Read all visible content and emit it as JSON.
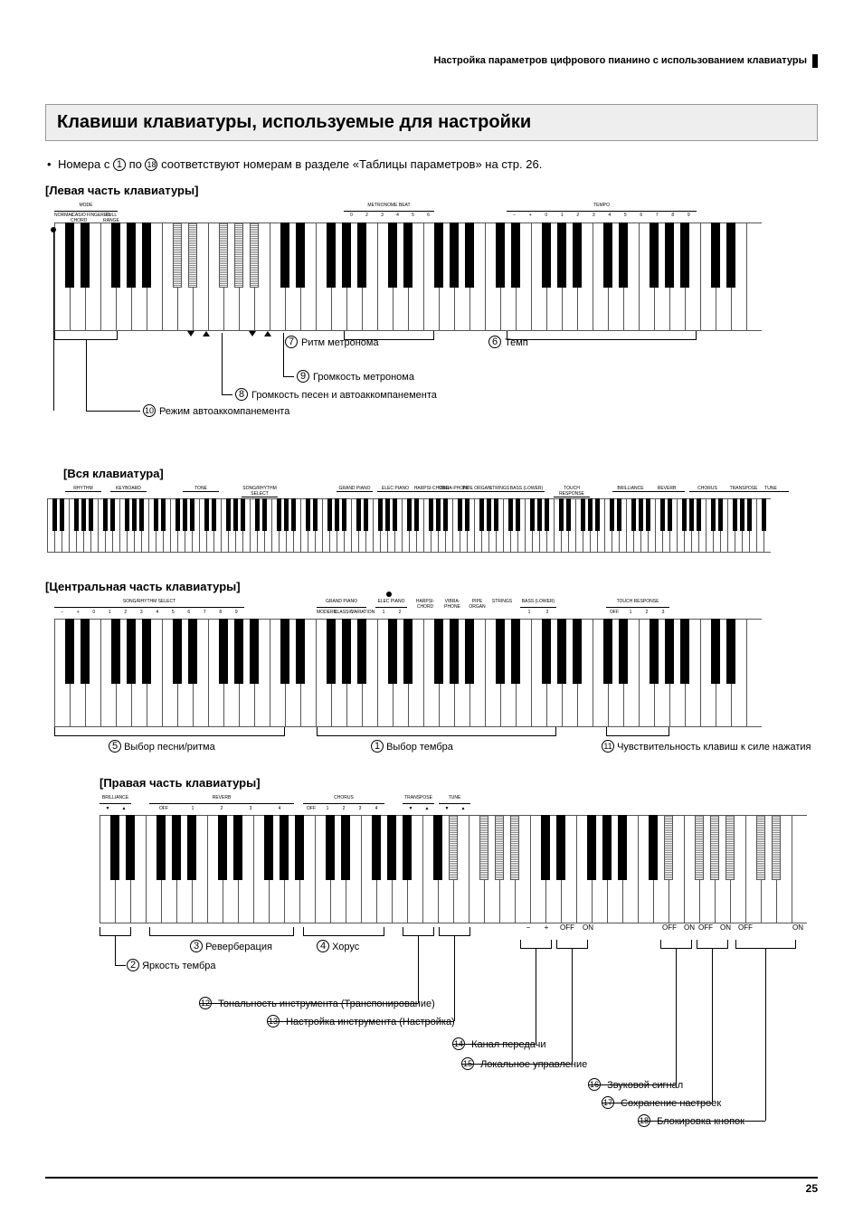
{
  "header": "Настройка параметров цифрового пианино с использованием клавиатуры",
  "title": "Клавиши клавиатуры, используемые для настройки",
  "intro_prefix": "Номера с ",
  "intro_mid": " по ",
  "intro_suffix": " соответствуют номерам в разделе «Таблицы параметров» на стр. 26.",
  "intro_n1": "1",
  "intro_n2": "18",
  "page_number": "25",
  "sec_left": "[Левая часть клавиатуры]",
  "sec_full": "[Вся клавиатура]",
  "sec_center": "[Центральная часть клавиатуры]",
  "sec_right": "[Правая часть клавиатуры]",
  "left": {
    "grp_mode": "MODE",
    "grp_metro": "METRONOME BEAT",
    "grp_tempo": "TEMPO",
    "mode_labels": [
      "NORMAL",
      "CASIO CHORD",
      "FINGERED",
      "FULL RANGE CHORD"
    ],
    "metro_labels": [
      "0",
      "2",
      "3",
      "4",
      "5",
      "6"
    ],
    "tempo_labels": [
      "−",
      "+",
      "0",
      "1",
      "2",
      "3",
      "4",
      "5",
      "6",
      "7",
      "8",
      "9"
    ],
    "c7": "Ритм метронома",
    "n7": "7",
    "c6": "Темп",
    "n6": "6",
    "c9": "Громкость метронома",
    "n9": "9",
    "c8": "Громкость песен и автоаккомпанемента",
    "n8": "8",
    "c10": "Режим автоаккомпанемента",
    "n10": "10",
    "tri_down": "▼",
    "tri_up": "▲"
  },
  "full": {
    "lbls": [
      "RHYTHM",
      "KEYBOARD",
      "TONE",
      "SONG/RHYTHM SELECT",
      "GRAND PIANO",
      "ELEC PIANO",
      "HARPSI-CHORD",
      "VIBRA-PHONE",
      "PIPE ORGAN",
      "STRINGS",
      "BASS (LOWER)",
      "TOUCH RESPONSE",
      "BRILLIANCE",
      "REVERB",
      "CHORUS",
      "TRANSPOSE",
      "TUNE"
    ]
  },
  "center": {
    "grp_song": "SONG/RHYTHM SELECT",
    "grp_gp": "GRAND PIANO",
    "grp_ep": "ELEC PIANO",
    "grp_other": [
      "HARPSI-CHORD",
      "VIBRA-PHONE",
      "PIPE ORGAN",
      "STRINGS"
    ],
    "grp_bass": "BASS (LOWER)",
    "grp_touch": "TOUCH RESPONSE",
    "song_labels": [
      "−",
      "+",
      "0",
      "1",
      "2",
      "3",
      "4",
      "5",
      "6",
      "7",
      "8",
      "9"
    ],
    "gp_labels": [
      "MODERN",
      "CLASSIC",
      "VARIATION"
    ],
    "ep_labels": [
      "1",
      "2"
    ],
    "bass_labels": [
      "1",
      "2"
    ],
    "touch_labels": [
      "OFF",
      "1",
      "2",
      "3"
    ],
    "c5": "Выбор песни/ритма",
    "n5": "5",
    "c1": "Выбор тембра",
    "n1": "1",
    "c11": "Чувствительность клавиш к силе нажатия",
    "n11": "11"
  },
  "right": {
    "grp_brill": "BRILLIANCE",
    "grp_reverb": "REVERB",
    "grp_chorus": "CHORUS",
    "grp_trans": "TRANSPOSE",
    "grp_tune": "TUNE",
    "brill_labels": [
      "▼",
      "▲"
    ],
    "reverb_labels": [
      "OFF",
      "1",
      "2",
      "3",
      "4"
    ],
    "chorus_labels": [
      "OFF",
      "1",
      "2",
      "3",
      "4"
    ],
    "c3": "Реверберация",
    "n3": "3",
    "c4": "Хорус",
    "n4": "4",
    "c2": "Яркость тембра",
    "n2": "2",
    "c12": "Тональность инструмента (Транспонирование)",
    "n12": "12",
    "c13": "Настройка инструмента (Настройка)",
    "n13": "13",
    "c14": "Канал передачи",
    "n14": "14",
    "c15": "Локальное управление",
    "n15": "15",
    "c16": "Звуковой сигнал",
    "n16": "16",
    "c17": "Сохранение настроек",
    "n17": "17",
    "c18": "Блокировка кнопок",
    "n18": "18",
    "bot_labels": [
      "−",
      "+",
      "OFF",
      "ON",
      "OFF",
      "ON",
      "OFF",
      "ON",
      "OFF",
      "ON"
    ]
  }
}
